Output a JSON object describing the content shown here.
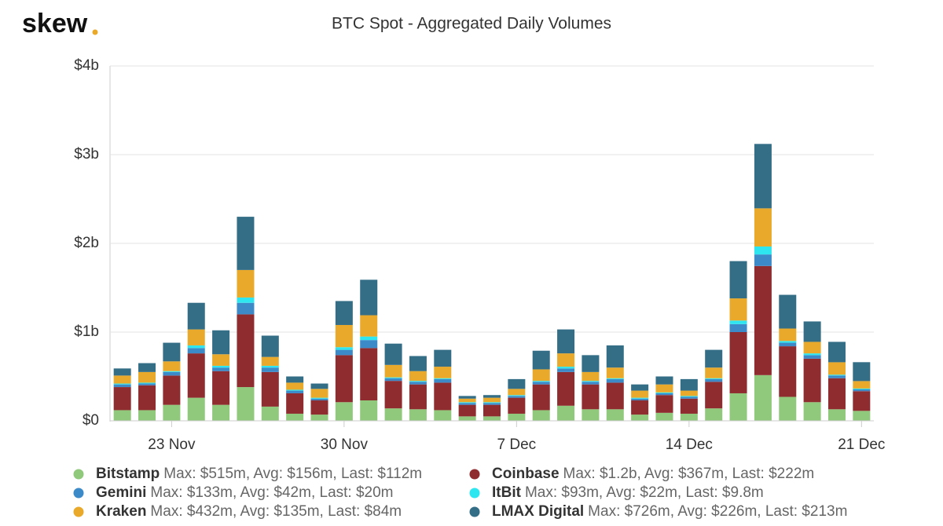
{
  "chart_data": {
    "type": "stacked_bar",
    "logo": "skew",
    "title": "BTC Spot - Aggregated Daily Volumes",
    "categories": [
      null,
      null,
      "23 Nov",
      null,
      null,
      null,
      null,
      null,
      null,
      "30 Nov",
      null,
      null,
      null,
      null,
      null,
      null,
      "7 Dec",
      null,
      null,
      null,
      null,
      null,
      null,
      "14 Dec",
      null,
      null,
      null,
      null,
      null,
      null,
      "21 Dec"
    ],
    "ylim": [
      0,
      4
    ],
    "yticks": [
      {
        "value": 0,
        "label": "$0"
      },
      {
        "value": 1,
        "label": "$1b"
      },
      {
        "value": 2,
        "label": "$2b"
      },
      {
        "value": 3,
        "label": "$3b"
      },
      {
        "value": 4,
        "label": "$4b"
      }
    ],
    "grid": true,
    "series": [
      {
        "name": "Bitstamp",
        "legend_text": "Max: $515m, Avg: $156m, Last: $112m",
        "color": "#90c97c",
        "values": [
          0.12,
          0.12,
          0.18,
          0.26,
          0.18,
          0.38,
          0.16,
          0.08,
          0.07,
          0.21,
          0.23,
          0.14,
          0.13,
          0.12,
          0.05,
          0.05,
          0.08,
          0.12,
          0.17,
          0.13,
          0.13,
          0.07,
          0.09,
          0.08,
          0.14,
          0.31,
          0.515,
          0.27,
          0.21,
          0.13,
          0.112
        ]
      },
      {
        "name": "Coinbase",
        "legend_text": "Max: $1.2b, Avg: $367m, Last: $222m",
        "color": "#8e2c2f",
        "values": [
          0.26,
          0.28,
          0.33,
          0.5,
          0.38,
          0.82,
          0.39,
          0.23,
          0.16,
          0.53,
          0.59,
          0.31,
          0.28,
          0.31,
          0.13,
          0.13,
          0.18,
          0.29,
          0.38,
          0.28,
          0.3,
          0.16,
          0.2,
          0.17,
          0.3,
          0.69,
          1.23,
          0.57,
          0.49,
          0.35,
          0.222
        ]
      },
      {
        "name": "Gemini",
        "legend_text": "Max: $133m, Avg: $42m, Last: $20m",
        "color": "#3d8ac9",
        "values": [
          0.03,
          0.02,
          0.04,
          0.06,
          0.04,
          0.13,
          0.05,
          0.03,
          0.02,
          0.06,
          0.09,
          0.03,
          0.03,
          0.04,
          0.02,
          0.02,
          0.02,
          0.03,
          0.04,
          0.03,
          0.04,
          0.02,
          0.02,
          0.02,
          0.03,
          0.09,
          0.13,
          0.04,
          0.04,
          0.03,
          0.02
        ]
      },
      {
        "name": "ItBit",
        "legend_text": "Max: $93m, Avg: $22m, Last: $9.8m",
        "color": "#2ee6f0",
        "values": [
          0.01,
          0.01,
          0.01,
          0.03,
          0.02,
          0.06,
          0.02,
          0.01,
          0.01,
          0.03,
          0.04,
          0.01,
          0.01,
          0.01,
          0.01,
          0.01,
          0.01,
          0.01,
          0.02,
          0.01,
          0.01,
          0.01,
          0.01,
          0.01,
          0.01,
          0.04,
          0.09,
          0.02,
          0.02,
          0.01,
          0.0098
        ]
      },
      {
        "name": "Kraken",
        "legend_text": "Max: $432m, Avg: $135m, Last: $84m",
        "color": "#e9a92a",
        "values": [
          0.09,
          0.12,
          0.11,
          0.18,
          0.13,
          0.31,
          0.1,
          0.08,
          0.1,
          0.25,
          0.24,
          0.14,
          0.11,
          0.13,
          0.04,
          0.05,
          0.07,
          0.13,
          0.15,
          0.1,
          0.12,
          0.08,
          0.09,
          0.06,
          0.12,
          0.25,
          0.43,
          0.14,
          0.13,
          0.14,
          0.084
        ]
      },
      {
        "name": "LMAX Digital",
        "legend_text": "Max: $726m, Avg: $226m, Last: $213m",
        "color": "#336d86",
        "values": [
          0.08,
          0.1,
          0.21,
          0.3,
          0.27,
          0.6,
          0.24,
          0.07,
          0.06,
          0.27,
          0.4,
          0.24,
          0.17,
          0.19,
          0.03,
          0.03,
          0.11,
          0.21,
          0.27,
          0.19,
          0.25,
          0.07,
          0.09,
          0.13,
          0.2,
          0.42,
          0.726,
          0.38,
          0.23,
          0.23,
          0.213
        ]
      }
    ]
  }
}
